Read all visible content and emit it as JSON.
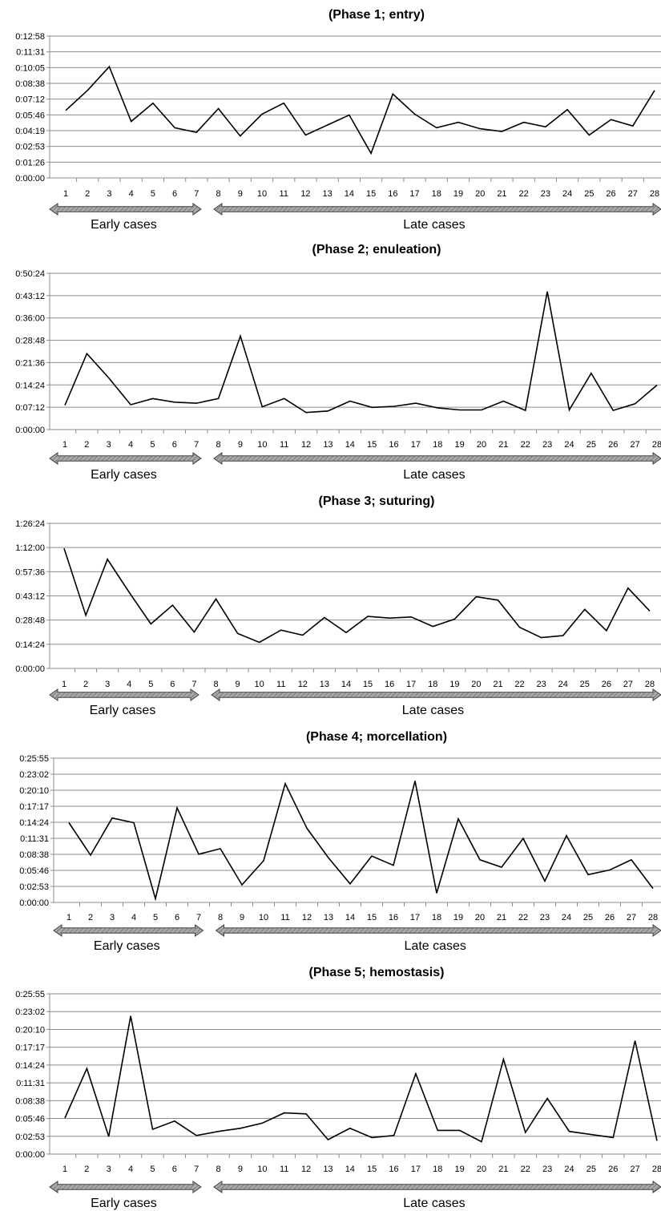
{
  "chart_data": [
    {
      "type": "line",
      "title": "(Phase 1; entry)",
      "xlabel": "",
      "ylabel": "",
      "x": [
        1,
        2,
        3,
        4,
        5,
        6,
        7,
        8,
        9,
        10,
        11,
        12,
        13,
        14,
        15,
        16,
        17,
        18,
        19,
        20,
        21,
        22,
        23,
        24,
        25,
        26,
        27,
        28
      ],
      "y_ticks": [
        "0:00:00",
        "0:01:26",
        "0:02:53",
        "0:04:19",
        "0:05:46",
        "0:07:12",
        "0:08:38",
        "0:10:05",
        "0:11:31",
        "0:12:58"
      ],
      "ylim_seconds": [
        0,
        778
      ],
      "series": [
        {
          "values_seconds": [
            370,
            480,
            610,
            310,
            410,
            275,
            250,
            380,
            230,
            350,
            410,
            235,
            290,
            345,
            135,
            460,
            350,
            275,
            305,
            270,
            255,
            305,
            280,
            375,
            235,
            320,
            285,
            480
          ]
        }
      ],
      "groups": [
        {
          "label": "Early cases",
          "from": 1,
          "to": 7
        },
        {
          "label": "Late cases",
          "from": 8,
          "to": 28
        }
      ],
      "grid": true,
      "legend": "none"
    },
    {
      "type": "line",
      "title": "(Phase 2; enuleation)",
      "xlabel": "",
      "ylabel": "",
      "x": [
        1,
        2,
        3,
        4,
        5,
        6,
        7,
        8,
        9,
        10,
        11,
        12,
        13,
        14,
        15,
        16,
        17,
        18,
        19,
        20,
        21,
        22,
        23,
        24,
        25,
        26,
        27,
        28
      ],
      "y_ticks": [
        "0:00:00",
        "0:07:12",
        "0:14:24",
        "0:21:36",
        "0:28:48",
        "0:36:00",
        "0:43:12",
        "0:50:24"
      ],
      "ylim_seconds": [
        0,
        3024
      ],
      "series": [
        {
          "values_seconds": [
            470,
            1470,
            1000,
            480,
            600,
            530,
            510,
            600,
            1810,
            440,
            600,
            330,
            360,
            550,
            430,
            450,
            510,
            420,
            380,
            380,
            550,
            370,
            2670,
            380,
            1090,
            370,
            500,
            860
          ]
        }
      ],
      "groups": [
        {
          "label": "Early cases",
          "from": 1,
          "to": 7
        },
        {
          "label": "Late cases",
          "from": 8,
          "to": 28
        }
      ],
      "grid": true,
      "legend": "none"
    },
    {
      "type": "line",
      "title": "(Phase 3; suturing)",
      "xlabel": "",
      "ylabel": "",
      "x": [
        1,
        2,
        3,
        4,
        5,
        6,
        7,
        8,
        9,
        10,
        11,
        12,
        13,
        14,
        15,
        16,
        17,
        18,
        19,
        20,
        21,
        22,
        23,
        24,
        25,
        26,
        27,
        28
      ],
      "y_ticks": [
        "0:00:00",
        "0:14:24",
        "0:28:48",
        "0:43:12",
        "0:57:36",
        "1:12:00",
        "1:26:24"
      ],
      "ylim_seconds": [
        0,
        5184
      ],
      "series": [
        {
          "values_seconds": [
            4290,
            1900,
            3900,
            2720,
            1590,
            2260,
            1300,
            2480,
            1250,
            930,
            1370,
            1190,
            1820,
            1280,
            1860,
            1800,
            1840,
            1500,
            1760,
            2560,
            2440,
            1470,
            1100,
            1170,
            2110,
            1350,
            2870,
            2050
          ]
        }
      ],
      "groups": [
        {
          "label": "Early cases",
          "from": 1,
          "to": 7
        },
        {
          "label": "Late cases",
          "from": 8,
          "to": 28
        }
      ],
      "grid": true,
      "legend": "none"
    },
    {
      "type": "line",
      "title": "(Phase 4; morcellation)",
      "xlabel": "",
      "ylabel": "",
      "x": [
        1,
        2,
        3,
        4,
        5,
        6,
        7,
        8,
        9,
        10,
        11,
        12,
        13,
        14,
        15,
        16,
        17,
        18,
        19,
        20,
        21,
        22,
        23,
        24,
        25,
        26,
        27,
        28
      ],
      "y_ticks": [
        "0:00:00",
        "0:02:53",
        "0:05:46",
        "0:08:38",
        "0:11:31",
        "0:14:24",
        "0:17:17",
        "0:20:10",
        "0:23:02",
        "0:25:55"
      ],
      "ylim_seconds": [
        0,
        1555
      ],
      "series": [
        {
          "values_seconds": [
            860,
            510,
            910,
            860,
            40,
            1020,
            520,
            580,
            190,
            450,
            1280,
            800,
            480,
            200,
            500,
            400,
            1310,
            100,
            900,
            460,
            380,
            690,
            230,
            720,
            300,
            350,
            460,
            150
          ]
        }
      ],
      "groups": [
        {
          "label": "Early cases",
          "from": 1,
          "to": 7
        },
        {
          "label": "Late cases",
          "from": 8,
          "to": 28
        }
      ],
      "grid": true,
      "legend": "none"
    },
    {
      "type": "line",
      "title": "(Phase 5; hemostasis)",
      "xlabel": "",
      "ylabel": "",
      "x": [
        1,
        2,
        3,
        4,
        5,
        6,
        7,
        8,
        9,
        10,
        11,
        12,
        13,
        14,
        15,
        16,
        17,
        18,
        19,
        20,
        21,
        22,
        23,
        24,
        25,
        26,
        27,
        28
      ],
      "y_ticks": [
        "0:00:00",
        "0:02:53",
        "0:05:46",
        "0:08:38",
        "0:11:31",
        "0:14:24",
        "0:17:17",
        "0:20:10",
        "0:23:02",
        "0:25:55"
      ],
      "ylim_seconds": [
        0,
        1555
      ],
      "series": [
        {
          "values_seconds": [
            350,
            830,
            170,
            1340,
            240,
            320,
            180,
            220,
            250,
            300,
            400,
            390,
            140,
            250,
            160,
            180,
            780,
            230,
            230,
            120,
            920,
            210,
            540,
            220,
            190,
            160,
            1100,
            130
          ]
        }
      ],
      "groups": [
        {
          "label": "Early cases",
          "from": 1,
          "to": 7
        },
        {
          "label": "Late cases",
          "from": 8,
          "to": 28
        }
      ],
      "grid": true,
      "legend": "none"
    }
  ]
}
